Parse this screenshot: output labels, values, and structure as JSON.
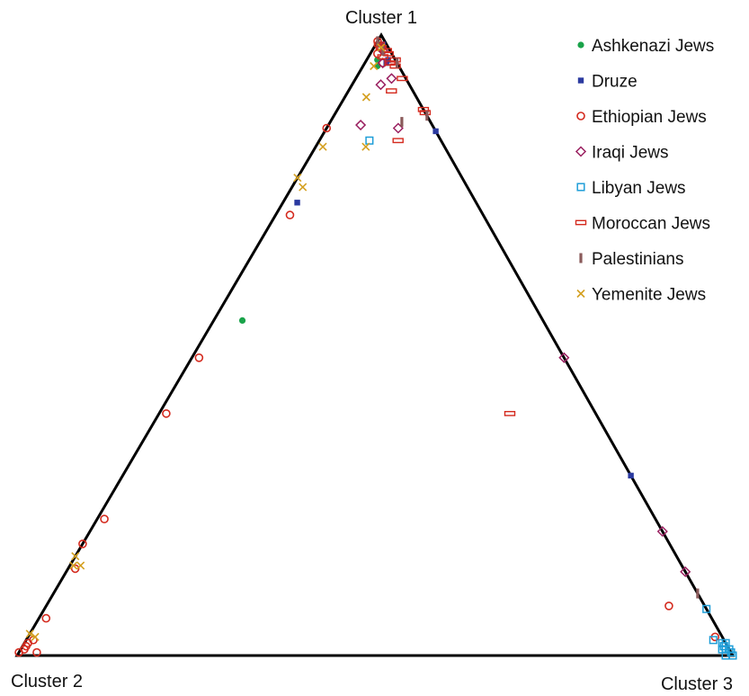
{
  "chart_data": {
    "type": "scatter",
    "subtype": "ternary",
    "axes": {
      "top": "Cluster 1",
      "left": "Cluster 2",
      "right": "Cluster 3"
    },
    "coordinate_note": "each point = [cluster1, cluster2, cluster3] membership proportions",
    "legend_position": "top-right",
    "grid": false,
    "series": [
      {
        "name": "Ashkenazi Jews",
        "marker": "filled-circle",
        "color": "#1aa34a",
        "points": [
          [
            0.985,
            0.01,
            0.005
          ],
          [
            0.96,
            0.025,
            0.015
          ],
          [
            0.95,
            0.03,
            0.02
          ],
          [
            0.54,
            0.42,
            0.04
          ]
        ]
      },
      {
        "name": "Druze",
        "marker": "filled-square",
        "color": "#2b3aa0",
        "points": [
          [
            0.985,
            0.005,
            0.01
          ],
          [
            0.96,
            0.01,
            0.03
          ],
          [
            0.955,
            0.015,
            0.03
          ],
          [
            0.845,
            0.0,
            0.155
          ],
          [
            0.73,
            0.25,
            0.02
          ],
          [
            0.29,
            0.0,
            0.71
          ]
        ]
      },
      {
        "name": "Ethiopian Jews",
        "marker": "open-circle",
        "color": "#d42a1e",
        "points": [
          [
            0.99,
            0.01,
            0.0
          ],
          [
            0.98,
            0.01,
            0.01
          ],
          [
            0.97,
            0.02,
            0.01
          ],
          [
            0.955,
            0.02,
            0.025
          ],
          [
            0.85,
            0.15,
            0.0
          ],
          [
            0.71,
            0.27,
            0.02
          ],
          [
            0.48,
            0.51,
            0.01
          ],
          [
            0.39,
            0.6,
            0.01
          ],
          [
            0.22,
            0.77,
            0.01
          ],
          [
            0.18,
            0.82,
            0.0
          ],
          [
            0.14,
            0.85,
            0.01
          ],
          [
            0.06,
            0.93,
            0.01
          ],
          [
            0.025,
            0.965,
            0.01
          ],
          [
            0.02,
            0.975,
            0.005
          ],
          [
            0.015,
            0.98,
            0.005
          ],
          [
            0.01,
            0.985,
            0.005
          ],
          [
            0.005,
            0.995,
            0.0
          ],
          [
            0.005,
            0.97,
            0.025
          ],
          [
            0.08,
            0.05,
            0.87
          ],
          [
            0.03,
            0.01,
            0.96
          ]
        ]
      },
      {
        "name": "Iraqi Jews",
        "marker": "open-diamond",
        "color": "#9a2060",
        "points": [
          [
            0.975,
            0.01,
            0.015
          ],
          [
            0.955,
            0.02,
            0.025
          ],
          [
            0.93,
            0.02,
            0.05
          ],
          [
            0.92,
            0.04,
            0.04
          ],
          [
            0.855,
            0.1,
            0.045
          ],
          [
            0.85,
            0.05,
            0.1
          ],
          [
            0.48,
            0.0,
            0.52
          ],
          [
            0.2,
            0.0,
            0.8
          ],
          [
            0.135,
            0.0,
            0.865
          ]
        ]
      },
      {
        "name": "Libyan Jews",
        "marker": "open-square",
        "color": "#1f9ed8",
        "points": [
          [
            0.83,
            0.1,
            0.07
          ],
          [
            0.075,
            0.0,
            0.925
          ],
          [
            0.02,
            0.0,
            0.98
          ],
          [
            0.015,
            0.005,
            0.98
          ],
          [
            0.01,
            0.01,
            0.98
          ],
          [
            0.0,
            0.0,
            1.0
          ],
          [
            0.01,
            0.0,
            0.99
          ],
          [
            0.02,
            0.005,
            0.975
          ],
          [
            0.0,
            0.01,
            0.99
          ],
          [
            0.015,
            0.005,
            0.98
          ],
          [
            0.005,
            0.0,
            0.995
          ],
          [
            0.01,
            0.005,
            0.985
          ],
          [
            0.025,
            0.015,
            0.96
          ]
        ]
      },
      {
        "name": "Moroccan Jews",
        "marker": "open-rect",
        "color": "#d42a1e",
        "points": [
          [
            0.985,
            0.01,
            0.005
          ],
          [
            0.98,
            0.01,
            0.01
          ],
          [
            0.975,
            0.005,
            0.02
          ],
          [
            0.97,
            0.005,
            0.025
          ],
          [
            0.965,
            0.015,
            0.02
          ],
          [
            0.96,
            0.0,
            0.04
          ],
          [
            0.955,
            0.01,
            0.035
          ],
          [
            0.95,
            0.005,
            0.045
          ],
          [
            0.93,
            0.005,
            0.065
          ],
          [
            0.91,
            0.03,
            0.06
          ],
          [
            0.88,
            0.0,
            0.12
          ],
          [
            0.875,
            0.0,
            0.125
          ],
          [
            0.83,
            0.06,
            0.11
          ],
          [
            0.39,
            0.12,
            0.49
          ]
        ]
      },
      {
        "name": "Palestinians",
        "marker": "bar",
        "color": "#8a5a5a",
        "points": [
          [
            0.99,
            0.01,
            0.0
          ],
          [
            0.975,
            0.01,
            0.015
          ],
          [
            0.955,
            0.0,
            0.045
          ],
          [
            0.87,
            0.0,
            0.13
          ],
          [
            0.86,
            0.04,
            0.1
          ],
          [
            0.1,
            0.0,
            0.9
          ]
        ]
      },
      {
        "name": "Yemenite Jews",
        "marker": "cross",
        "color": "#d4a020",
        "points": [
          [
            0.98,
            0.01,
            0.01
          ],
          [
            0.95,
            0.035,
            0.015
          ],
          [
            0.9,
            0.07,
            0.03
          ],
          [
            0.82,
            0.11,
            0.07
          ],
          [
            0.82,
            0.17,
            0.01
          ],
          [
            0.77,
            0.23,
            0.0
          ],
          [
            0.755,
            0.23,
            0.015
          ],
          [
            0.145,
            0.85,
            0.005
          ],
          [
            0.145,
            0.84,
            0.015
          ],
          [
            0.16,
            0.84,
            0.0
          ],
          [
            0.035,
            0.965,
            0.0
          ],
          [
            0.03,
            0.96,
            0.01
          ]
        ]
      }
    ]
  }
}
